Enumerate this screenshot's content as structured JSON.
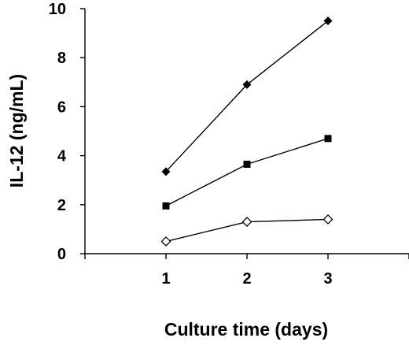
{
  "chart_data": {
    "type": "line",
    "title": "",
    "xlabel": "Culture time (days)",
    "ylabel": "IL-12 (ng/mL)",
    "x": [
      1,
      2,
      3
    ],
    "xlim": [
      0,
      4
    ],
    "ylim": [
      0,
      10
    ],
    "x_ticks": [
      "1",
      "2",
      "3"
    ],
    "y_ticks": [
      "0",
      "2",
      "4",
      "6",
      "8",
      "10"
    ],
    "grid": false,
    "legend": "none",
    "series": [
      {
        "marker": "filled-diamond",
        "values": [
          3.35,
          6.9,
          9.5
        ]
      },
      {
        "marker": "filled-square",
        "values": [
          1.95,
          3.65,
          4.7
        ]
      },
      {
        "marker": "open-diamond",
        "values": [
          0.5,
          1.3,
          1.4
        ]
      }
    ]
  }
}
